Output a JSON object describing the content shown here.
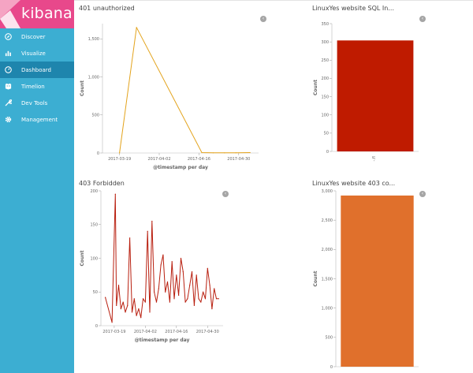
{
  "brand": {
    "name": "kibana"
  },
  "sidebar": {
    "items": [
      {
        "label": "Discover",
        "icon": "compass-icon"
      },
      {
        "label": "Visualize",
        "icon": "bar-chart-icon"
      },
      {
        "label": "Dashboard",
        "icon": "dashboard-icon",
        "active": true
      },
      {
        "label": "Timelion",
        "icon": "timelion-icon"
      },
      {
        "label": "Dev Tools",
        "icon": "wrench-icon"
      },
      {
        "label": "Management",
        "icon": "gear-icon"
      }
    ]
  },
  "colors": {
    "sidebar": "#3caed2",
    "brand": "#e8488b",
    "active": "#1e85ad",
    "line401": "#e3a31c",
    "line403": "#b81e0e",
    "barSql": "#bf1b00",
    "bar403": "#e0702c"
  },
  "panels": {
    "p401": {
      "title": "401 unauthorized"
    },
    "psql": {
      "title": "LinuxYes website SQL In..."
    },
    "p403": {
      "title": "403 Forbidden"
    },
    "p403c": {
      "title": "LinuxYes website 403 co..."
    }
  },
  "chart_data": [
    {
      "id": "p401",
      "type": "line",
      "xlabel": "@timestamp per day",
      "ylabel": "Count",
      "ylim": [
        0,
        1700
      ],
      "y_ticks": [
        "0",
        "500",
        "1,000",
        "1,500"
      ],
      "y_tick_values": [
        0,
        500,
        1000,
        1500
      ],
      "x_ticks": [
        "2017-03-19",
        "2017-04-02",
        "2017-04-16",
        "2017-04-30"
      ],
      "x_tick_days": [
        19,
        33,
        47,
        61
      ],
      "xlim_days": [
        13,
        68
      ],
      "series": [
        {
          "x_days": [
            19,
            25,
            48,
            52,
            56,
            60,
            65
          ],
          "values": [
            0,
            1650,
            5,
            2,
            2,
            3,
            5
          ]
        }
      ]
    },
    {
      "id": "psql",
      "type": "bar",
      "xlabel": "",
      "ylabel": "Count",
      "ylim": [
        0,
        350
      ],
      "y_ticks": [
        "0",
        "50",
        "100",
        "150",
        "200",
        "250",
        "300",
        "350"
      ],
      "y_tick_values": [
        0,
        50,
        100,
        150,
        200,
        250,
        300,
        350
      ],
      "categories": [
        "-.fl"
      ],
      "values": [
        304
      ]
    },
    {
      "id": "p403",
      "type": "line",
      "xlabel": "@timestamp per day",
      "ylabel": "Count",
      "ylim": [
        0,
        200
      ],
      "y_ticks": [
        "0",
        "50",
        "100",
        "150",
        "200"
      ],
      "y_tick_values": [
        0,
        50,
        100,
        150,
        200
      ],
      "x_ticks": [
        "2017-03-19",
        "2017-04-02",
        "2017-04-16",
        "2017-04-30"
      ],
      "x_tick_days": [
        19,
        33,
        47,
        61
      ],
      "xlim_days": [
        13,
        68
      ],
      "series": [
        {
          "x_days": [
            15,
            18,
            19.5,
            20,
            21,
            22,
            23,
            24,
            25,
            26,
            27,
            28,
            29,
            30,
            31,
            32,
            33,
            34,
            35,
            36,
            37,
            38,
            39,
            40,
            41,
            42,
            43,
            44,
            45,
            46,
            47,
            48,
            49,
            50,
            51,
            52,
            53,
            54,
            55,
            56,
            57,
            58,
            59,
            60,
            61,
            62,
            63,
            64,
            65,
            66
          ],
          "values": [
            42,
            5,
            195,
            30,
            60,
            25,
            35,
            20,
            30,
            130,
            20,
            40,
            15,
            25,
            12,
            40,
            35,
            140,
            20,
            155,
            50,
            35,
            55,
            90,
            105,
            50,
            65,
            35,
            95,
            40,
            75,
            45,
            100,
            80,
            35,
            40,
            60,
            80,
            30,
            75,
            40,
            35,
            50,
            40,
            85,
            60,
            25,
            55,
            40,
            40
          ]
        }
      ]
    },
    {
      "id": "p403c",
      "type": "bar",
      "xlabel": "",
      "ylabel": "Count",
      "ylim": [
        0,
        3000
      ],
      "y_ticks": [
        "0",
        "500",
        "1,000",
        "1,500",
        "2,000",
        "2,500",
        "3,000"
      ],
      "y_tick_values": [
        0,
        500,
        1000,
        1500,
        2000,
        2500,
        3000
      ],
      "categories": [
        ""
      ],
      "values": [
        2920
      ]
    }
  ]
}
